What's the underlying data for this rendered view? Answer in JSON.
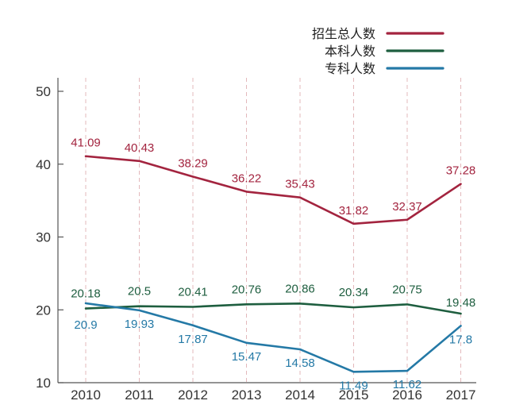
{
  "chart_data": {
    "type": "line",
    "title": "",
    "xlabel": "",
    "ylabel": "",
    "categories": [
      "2010",
      "2011",
      "2012",
      "2013",
      "2014",
      "2015",
      "2016",
      "2017"
    ],
    "ylim": [
      10,
      50
    ],
    "yticks": [
      "10",
      "20",
      "30",
      "40",
      "50"
    ],
    "grid": "vertical dashed",
    "legend_position": "top-right",
    "series": [
      {
        "name": "招生总人数",
        "color": "#a3243f",
        "values": [
          41.09,
          40.43,
          38.29,
          36.22,
          35.43,
          31.82,
          32.37,
          37.28
        ],
        "labels": [
          "41.09",
          "40.43",
          "38.29",
          "36.22",
          "35.43",
          "31.82",
          "32.37",
          "37.28"
        ]
      },
      {
        "name": "本科人数",
        "color": "#1e5e3f",
        "values": [
          20.18,
          20.5,
          20.41,
          20.76,
          20.86,
          20.34,
          20.75,
          19.48
        ],
        "labels": [
          "20.18",
          "20.5",
          "20.41",
          "20.76",
          "20.86",
          "20.34",
          "20.75",
          "19.48"
        ]
      },
      {
        "name": "专科人数",
        "color": "#2479a6",
        "values": [
          20.9,
          19.93,
          17.87,
          15.47,
          14.58,
          11.49,
          11.62,
          17.8
        ],
        "labels": [
          "20.9",
          "19.93",
          "17.87",
          "15.47",
          "14.58",
          "11.49",
          "11.62",
          "17.8"
        ]
      }
    ]
  }
}
